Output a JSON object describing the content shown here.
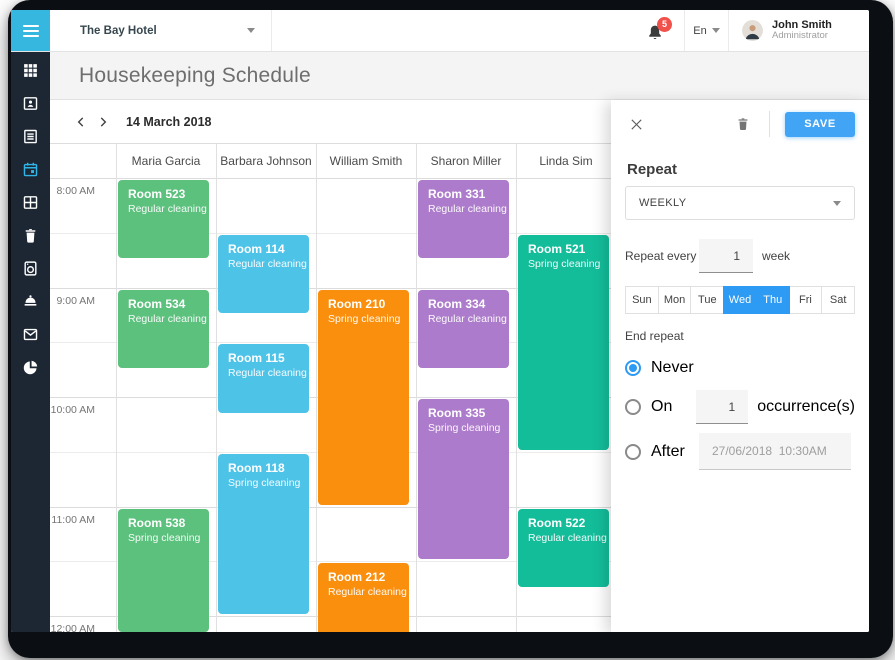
{
  "topbar": {
    "hotel_name": "The Bay Hotel",
    "notifications_count": "5",
    "language": "En",
    "user_name": "John Smith",
    "user_role": "Administrator"
  },
  "sidebar": {
    "icons": [
      "apps-grid-icon",
      "staff-card-icon",
      "document-list-icon",
      "calendar-icon",
      "kanban-board-icon",
      "trash-icon",
      "laundry-machine-icon",
      "service-bell-icon",
      "mail-icon",
      "pie-chart-icon"
    ],
    "active_icon": "calendar-icon"
  },
  "header": {
    "title": "Housekeeping Schedule"
  },
  "date_nav": {
    "date_label": "14 March 2018"
  },
  "calendar": {
    "time_labels": [
      "8:00 AM",
      "9:00 AM",
      "10:00 AM",
      "11:00 AM",
      "12:00 AM"
    ],
    "staff_columns": [
      "Maria Garcia",
      "Barbara Johnson",
      "William Smith",
      "Sharon Miller",
      "Linda Sim"
    ],
    "events": [
      {
        "room": "Room 523",
        "service": "Regular cleaning",
        "staff_column": 0,
        "start": "8:00",
        "end": "8:45",
        "color": "#5bc17d"
      },
      {
        "room": "Room 534",
        "service": "Regular cleaning",
        "staff_column": 0,
        "start": "9:00",
        "end": "9:45",
        "color": "#5bc17d"
      },
      {
        "room": "Room 538",
        "service": "Spring cleaning",
        "staff_column": 0,
        "start": "11:00",
        "end": "12:10",
        "color": "#5bc17d"
      },
      {
        "room": "Room 114",
        "service": "Regular cleaning",
        "staff_column": 1,
        "start": "8:30",
        "end": "9:15",
        "color": "#4ec3e8"
      },
      {
        "room": "Room 115",
        "service": "Regular cleaning",
        "staff_column": 1,
        "start": "9:30",
        "end": "10:10",
        "color": "#4ec3e8"
      },
      {
        "room": "Room 118",
        "service": "Spring cleaning",
        "staff_column": 1,
        "start": "10:30",
        "end": "12:00",
        "color": "#4ec3e8"
      },
      {
        "room": "Room 210",
        "service": "Spring cleaning",
        "staff_column": 2,
        "start": "9:00",
        "end": "11:00",
        "color": "#fa8e0d"
      },
      {
        "room": "Room 212",
        "service": "Regular cleaning",
        "staff_column": 2,
        "start": "11:30",
        "end": "12:15",
        "color": "#fa8e0d"
      },
      {
        "room": "Room 331",
        "service": "Regular cleaning",
        "staff_column": 3,
        "start": "8:00",
        "end": "8:45",
        "color": "#ad7bcb"
      },
      {
        "room": "Room 334",
        "service": "Regular cleaning",
        "staff_column": 3,
        "start": "9:00",
        "end": "9:45",
        "color": "#ad7bcb"
      },
      {
        "room": "Room 335",
        "service": "Spring cleaning",
        "staff_column": 3,
        "start": "10:00",
        "end": "11:30",
        "color": "#ad7bcb"
      },
      {
        "room": "Room 521",
        "service": "Spring cleaning",
        "staff_column": 4,
        "start": "8:30",
        "end": "10:30",
        "color": "#13bd9a"
      },
      {
        "room": "Room 522",
        "service": "Regular cleaning",
        "staff_column": 4,
        "start": "11:00",
        "end": "11:45",
        "color": "#13bd9a"
      }
    ]
  },
  "panel": {
    "save_label": "SAVE",
    "repeat_heading": "Repeat",
    "frequency_value": "WEEKLY",
    "repeat_every_label": "Repeat every",
    "repeat_every_value": "1",
    "repeat_every_unit": "week",
    "days": [
      {
        "label": "Sun",
        "selected": false
      },
      {
        "label": "Mon",
        "selected": false
      },
      {
        "label": "Tue",
        "selected": false
      },
      {
        "label": "Wed",
        "selected": true
      },
      {
        "label": "Thu",
        "selected": true
      },
      {
        "label": "Fri",
        "selected": false
      },
      {
        "label": "Sat",
        "selected": false
      }
    ],
    "end_repeat_label": "End repeat",
    "end_options": [
      {
        "label": "Never",
        "selected": true
      },
      {
        "label": "On",
        "selected": false,
        "value": "1",
        "suffix": "occurrence(s)"
      },
      {
        "label": "After",
        "selected": false,
        "value": "27/06/2018  10:30AM"
      }
    ]
  },
  "colors": {
    "accent_blue": "#2d9af3",
    "save_button": "#42a4f5",
    "hamburger_bg": "#36b7e0",
    "sidebar_bg": "#1d2733",
    "active_icon": "#2fb5e8",
    "badge_red": "#f2504b",
    "event_green": "#5bc17d",
    "event_blue": "#4ec3e8",
    "event_orange": "#fa8e0d",
    "event_purple": "#ad7bcb",
    "event_teal": "#13bd9a"
  }
}
